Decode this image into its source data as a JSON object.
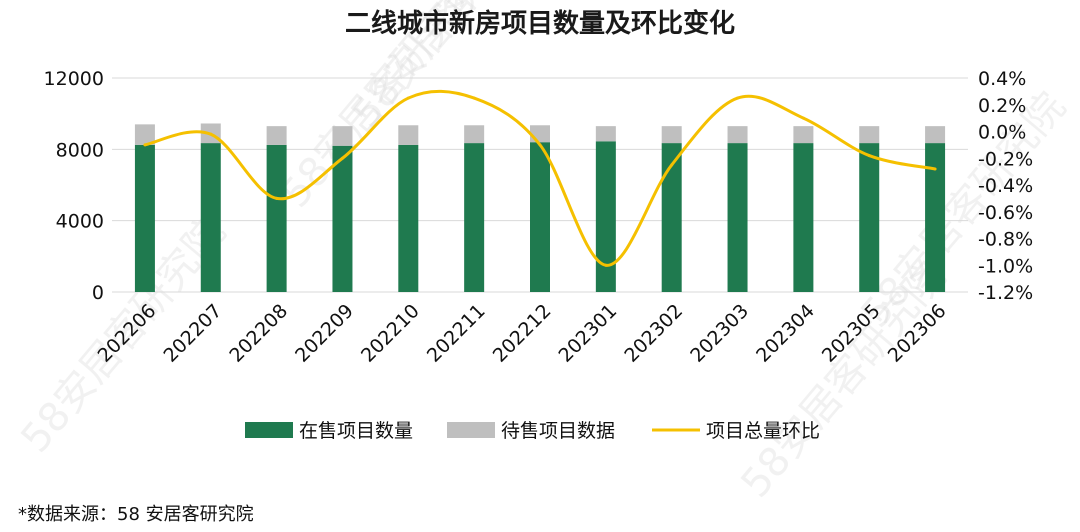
{
  "chart_data": {
    "type": "bar",
    "title": "二线城市新房项目数量及环比变化",
    "categories": [
      "202206",
      "202207",
      "202208",
      "202209",
      "202210",
      "202211",
      "202212",
      "202301",
      "202302",
      "202303",
      "202304",
      "202305",
      "202306"
    ],
    "series": [
      {
        "name": "在售项目数量",
        "type": "bar",
        "stack": "total",
        "axis": "left",
        "color": "#1f7a4f",
        "values": [
          8250,
          8350,
          8250,
          8200,
          8250,
          8350,
          8400,
          8450,
          8350,
          8350,
          8350,
          8350,
          8350
        ]
      },
      {
        "name": "待售项目数据",
        "type": "bar",
        "stack": "total",
        "axis": "left",
        "color": "#bfbfbf",
        "values": [
          1150,
          1100,
          1050,
          1100,
          1100,
          1000,
          950,
          850,
          950,
          950,
          950,
          950,
          950
        ]
      },
      {
        "name": "项目总量环比",
        "type": "line",
        "axis": "right",
        "color": "#f5c000",
        "unit": "%",
        "values": [
          -0.1,
          -0.02,
          -0.5,
          -0.2,
          0.25,
          0.25,
          -0.1,
          -1.0,
          -0.25,
          0.25,
          0.1,
          -0.18,
          -0.28
        ]
      }
    ],
    "y_left": {
      "min": 0,
      "max": 12000,
      "ticks": [
        "0",
        "4000",
        "8000",
        "12000"
      ]
    },
    "y_right": {
      "min": -1.2,
      "max": 0.4,
      "ticks": [
        "0.4%",
        "0.2%",
        "0.0%",
        "-0.2%",
        "-0.4%",
        "-0.6%",
        "-0.8%",
        "-1.0%",
        "-1.2%"
      ]
    },
    "grid": true,
    "legend_position": "bottom"
  },
  "source_note": "*数据来源：58 安居客研究院",
  "watermark_text": "58安居客研究院"
}
